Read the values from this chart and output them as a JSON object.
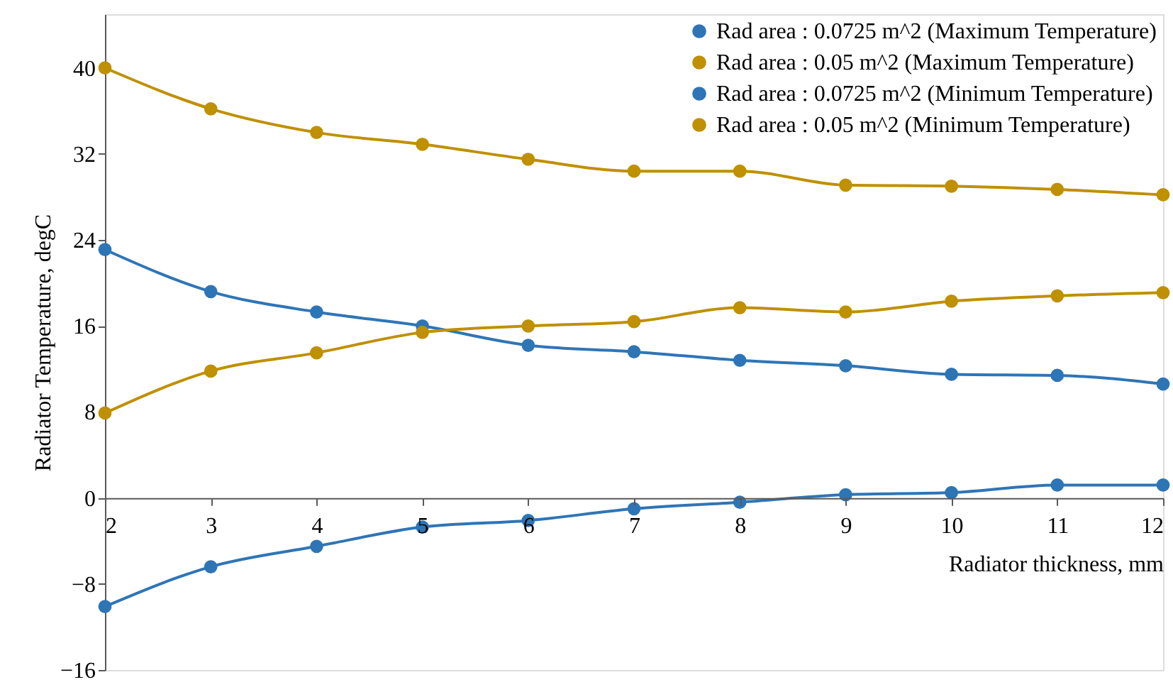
{
  "chart_data": {
    "type": "line",
    "xlabel": "Radiator thickness, mm",
    "ylabel": "Radiator Temperature, degC",
    "x": [
      2,
      3,
      4,
      5,
      6,
      7,
      8,
      9,
      10,
      11,
      12
    ],
    "series": [
      {
        "name": "Rad area : 0.0725 m^2 (Maximum Temperature)",
        "color": "#2e75b6",
        "values": [
          23.1,
          19.2,
          17.3,
          16.0,
          14.2,
          13.6,
          12.8,
          12.3,
          11.5,
          11.4,
          10.6
        ]
      },
      {
        "name": "Rad area : 0.05 m^2 (Maximum Temperature)",
        "color": "#bf9000",
        "values": [
          40.0,
          36.2,
          34.0,
          32.9,
          31.5,
          30.4,
          30.4,
          29.1,
          29.0,
          28.7,
          28.2
        ]
      },
      {
        "name": "Rad area : 0.0725 m^2 (Minimum Temperature)",
        "color": "#2e75b6",
        "values": [
          -10.1,
          -6.4,
          -4.5,
          -2.7,
          -2.1,
          -1.0,
          -0.4,
          0.3,
          0.5,
          1.2,
          1.2
        ]
      },
      {
        "name": "Rad area : 0.05 m^2 (Minimum Temperature)",
        "color": "#bf9000",
        "values": [
          7.9,
          11.8,
          13.5,
          15.4,
          16.0,
          16.4,
          17.7,
          17.3,
          18.3,
          18.8,
          19.1
        ]
      }
    ],
    "xlim": [
      2,
      12
    ],
    "xticks": [
      2,
      3,
      4,
      5,
      6,
      7,
      8,
      9,
      10,
      11,
      12
    ],
    "ylim": [
      -16,
      45
    ],
    "yticks": [
      -16,
      -8,
      0,
      8,
      16,
      24,
      32,
      40
    ],
    "grid": false,
    "legend": "top right",
    "marker": "circle",
    "line_style": "solid"
  }
}
